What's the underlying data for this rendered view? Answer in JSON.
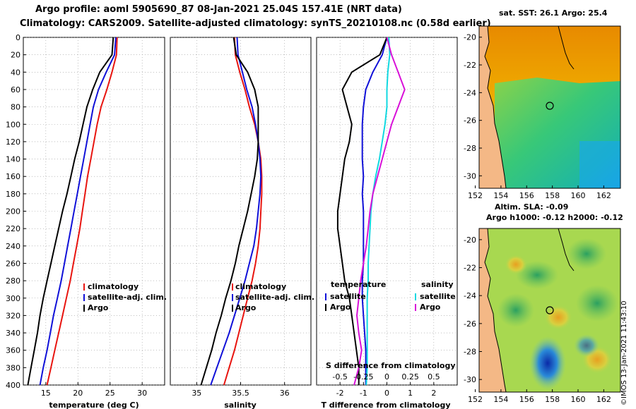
{
  "header": {
    "line1": "Argo profile: aoml 5905690_87 08-Jan-2021 25.04S 157.41E (NRT data)",
    "line2": "Climatology: CARS2009. Satellite-adjusted climatology: synTS_20210108.nc (0.58d earlier)"
  },
  "map_panels": {
    "sst_title": "sat. SST: 26.1 Argo: 25.4",
    "sla_title_1": "Altim. SLA: -0.09",
    "sla_title_2": "Argo h1000: -0.12 h2000: -0.12",
    "lat_ticks": [
      "-20",
      "-22",
      "-24",
      "-26",
      "-28",
      "-30"
    ],
    "lon_ticks": [
      "152",
      "154",
      "156",
      "158",
      "160",
      "162"
    ],
    "float_position": {
      "lon": 157.41,
      "lat": -25.04
    }
  },
  "credit": "©IMOS 13-Jan-2021 11:43:10",
  "colors": {
    "climatology": "#e8140f",
    "satellite": "#1010d8",
    "argo": "#000000",
    "s_satellite": "#10d8e0",
    "s_salinity": "#d810d8"
  },
  "chart_data": [
    {
      "type": "line",
      "name": "temperature",
      "xlabel": "temperature (deg C)",
      "ylabel": "",
      "xlim": [
        11.5,
        33.5
      ],
      "ylim": [
        0,
        400
      ],
      "xticks": [
        "15",
        "20",
        "25",
        "30"
      ],
      "yticks": [
        "0",
        "20",
        "40",
        "60",
        "80",
        "100",
        "120",
        "140",
        "160",
        "180",
        "200",
        "220",
        "240",
        "260",
        "280",
        "300",
        "320",
        "340",
        "360",
        "380",
        "400"
      ],
      "legend": [
        "climatology",
        "satellite-adj. clim.",
        "Argo"
      ],
      "depth": [
        0,
        20,
        40,
        60,
        80,
        100,
        120,
        140,
        160,
        180,
        200,
        220,
        240,
        260,
        280,
        300,
        320,
        340,
        360,
        380,
        400
      ],
      "series": [
        {
          "name": "climatology",
          "values": [
            26.1,
            26.0,
            25.3,
            24.5,
            23.6,
            23.0,
            22.5,
            22.0,
            21.5,
            21.1,
            20.7,
            20.3,
            19.8,
            19.3,
            18.8,
            18.2,
            17.6,
            17.0,
            16.4,
            15.8,
            15.2
          ]
        },
        {
          "name": "satellite-adj. clim.",
          "values": [
            25.9,
            25.7,
            24.4,
            23.2,
            22.4,
            21.9,
            21.4,
            20.9,
            20.4,
            19.9,
            19.4,
            18.9,
            18.4,
            17.9,
            17.4,
            16.8,
            16.2,
            15.7,
            15.2,
            14.6,
            14.1
          ]
        },
        {
          "name": "Argo",
          "values": [
            25.5,
            25.3,
            23.4,
            22.3,
            21.4,
            20.8,
            20.2,
            19.5,
            18.9,
            18.3,
            17.6,
            17.0,
            16.4,
            15.8,
            15.2,
            14.6,
            14.1,
            13.7,
            13.2,
            12.7,
            12.2
          ]
        }
      ]
    },
    {
      "type": "line",
      "name": "salinity",
      "xlabel": "salinity",
      "ylabel": "",
      "xlim": [
        34.7,
        36.3
      ],
      "ylim": [
        0,
        400
      ],
      "xticks": [
        "35",
        "35.5",
        "36"
      ],
      "legend": [
        "climatology",
        "satellite-adj. clim.",
        "Argo"
      ],
      "depth": [
        0,
        20,
        40,
        60,
        80,
        100,
        120,
        140,
        160,
        180,
        200,
        220,
        240,
        260,
        280,
        300,
        320,
        340,
        360,
        380,
        400
      ],
      "series": [
        {
          "name": "climatology",
          "values": [
            35.43,
            35.44,
            35.49,
            35.55,
            35.6,
            35.66,
            35.7,
            35.73,
            35.74,
            35.74,
            35.73,
            35.72,
            35.7,
            35.67,
            35.63,
            35.58,
            35.53,
            35.48,
            35.43,
            35.37,
            35.31
          ]
        },
        {
          "name": "satellite-adj. clim.",
          "values": [
            35.46,
            35.47,
            35.52,
            35.57,
            35.63,
            35.67,
            35.7,
            35.72,
            35.73,
            35.72,
            35.7,
            35.68,
            35.65,
            35.6,
            35.55,
            35.49,
            35.43,
            35.37,
            35.3,
            35.23,
            35.16
          ]
        },
        {
          "name": "Argo",
          "values": [
            35.42,
            35.45,
            35.58,
            35.66,
            35.7,
            35.7,
            35.7,
            35.69,
            35.66,
            35.62,
            35.58,
            35.53,
            35.48,
            35.44,
            35.39,
            35.33,
            35.28,
            35.22,
            35.17,
            35.11,
            35.05
          ]
        }
      ]
    },
    {
      "type": "line",
      "name": "difference_from_climatology",
      "xlabel": "T difference from climatology",
      "secondary_xlabel": "S difference from climatology",
      "xlim": [
        -3,
        3
      ],
      "ylim": [
        0,
        400
      ],
      "xticks": [
        "-2",
        "-1",
        "0",
        "1",
        "2"
      ],
      "secondary_xticks": [
        "-0.5",
        "-0.25",
        "0",
        "0.25",
        "0.5"
      ],
      "legend_temperature_title": "temperature",
      "legend_salinity_title": "salinity",
      "legend_temperature": [
        "satellite",
        "Argo"
      ],
      "legend_salinity": [
        "satellite",
        "Argo"
      ],
      "depth": [
        0,
        20,
        40,
        60,
        80,
        100,
        120,
        140,
        160,
        180,
        200,
        220,
        240,
        260,
        280,
        300,
        320,
        340,
        360,
        380,
        400
      ],
      "series": [
        {
          "name": "temperature satellite",
          "values": [
            0.0,
            -0.2,
            -0.6,
            -0.9,
            -1.0,
            -1.05,
            -1.05,
            -1.05,
            -1.0,
            -1.05,
            -1.0,
            -1.0,
            -1.0,
            -1.0,
            -1.05,
            -1.05,
            -1.0,
            -0.95,
            -0.9,
            -0.9,
            -0.9
          ]
        },
        {
          "name": "temperature Argo",
          "values": [
            0.0,
            -0.3,
            -1.5,
            -1.9,
            -1.7,
            -1.5,
            -1.6,
            -1.8,
            -1.9,
            -2.0,
            -2.1,
            -2.1,
            -2.0,
            -1.9,
            -1.8,
            -1.6,
            -1.5,
            -1.4,
            -1.3,
            -1.2,
            -1.2
          ]
        },
        {
          "name": "salinity satellite",
          "values": [
            0.02,
            0.03,
            0.01,
            0.0,
            0.0,
            -0.02,
            -0.05,
            -0.08,
            -0.12,
            -0.15,
            -0.17,
            -0.18,
            -0.19,
            -0.2,
            -0.2,
            -0.21,
            -0.21,
            -0.21,
            -0.21,
            -0.21,
            -0.22
          ]
        },
        {
          "name": "salinity Argo",
          "values": [
            0.0,
            0.05,
            0.12,
            0.19,
            0.12,
            0.05,
            0.0,
            -0.05,
            -0.1,
            -0.15,
            -0.18,
            -0.2,
            -0.22,
            -0.25,
            -0.28,
            -0.3,
            -0.32,
            -0.3,
            -0.27,
            -0.3,
            -0.35
          ]
        }
      ]
    }
  ]
}
